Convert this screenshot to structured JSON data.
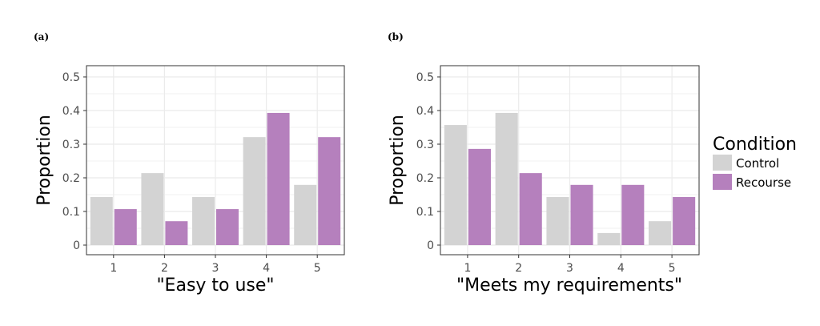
{
  "legend": {
    "title": "Condition",
    "entries": [
      {
        "label": "Control",
        "color": "#d3d3d3"
      },
      {
        "label": "Recourse",
        "color": "#b580bd"
      }
    ]
  },
  "chart_data": [
    {
      "type": "bar",
      "panel_label": "(a)",
      "categories": [
        "1",
        "2",
        "3",
        "4",
        "5"
      ],
      "series": [
        {
          "name": "Control",
          "values": [
            0.143,
            0.214,
            0.143,
            0.321,
            0.179
          ]
        },
        {
          "name": "Recourse",
          "values": [
            0.107,
            0.071,
            0.107,
            0.393,
            0.321
          ]
        }
      ],
      "xlabel": "\"Easy to use\"",
      "ylabel": "Proportion",
      "ylim": [
        0,
        0.5
      ],
      "yticks": [
        "0",
        "0.1",
        "0.2",
        "0.3",
        "0.4",
        "0.5"
      ],
      "grid": true
    },
    {
      "type": "bar",
      "panel_label": "(b)",
      "categories": [
        "1",
        "2",
        "3",
        "4",
        "5"
      ],
      "series": [
        {
          "name": "Control",
          "values": [
            0.357,
            0.393,
            0.143,
            0.036,
            0.071
          ]
        },
        {
          "name": "Recourse",
          "values": [
            0.286,
            0.214,
            0.179,
            0.179,
            0.143
          ]
        }
      ],
      "xlabel": "\"Meets my requirements\"",
      "ylabel": "Proportion",
      "ylim": [
        0,
        0.5
      ],
      "yticks": [
        "0",
        "0.1",
        "0.2",
        "0.3",
        "0.4",
        "0.5"
      ],
      "grid": true
    }
  ]
}
